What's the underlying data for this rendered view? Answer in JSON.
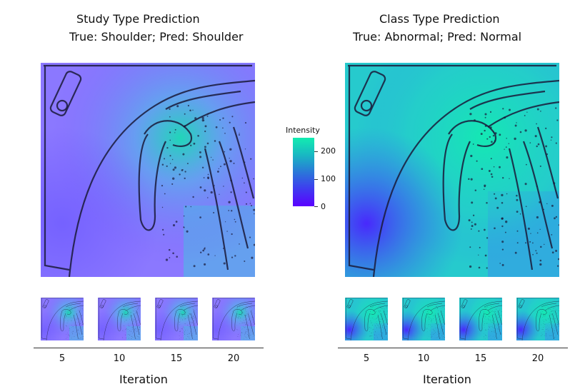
{
  "panels": [
    {
      "title": "Study Type Prediction",
      "subtitle": "True: Shoulder; Pred: Shoulder",
      "xlabel": "Iteration",
      "ticks": [
        "5",
        "10",
        "15",
        "20"
      ]
    },
    {
      "title": "Class Type Prediction",
      "subtitle": "True: Abnormal; Pred: Normal",
      "xlabel": "Iteration",
      "ticks": [
        "5",
        "10",
        "15",
        "20"
      ]
    }
  ],
  "colorbar": {
    "title": "Intensity",
    "ticks": [
      "200",
      "100",
      "0"
    ],
    "colors": [
      "#5a00ff",
      "#3f3af0",
      "#2a78d8",
      "#18b8c2",
      "#12ecb0"
    ]
  },
  "chart_data": [
    {
      "type": "heatmap",
      "title": "Study Type Prediction",
      "subtitle": "True: Shoulder; Pred: Shoulder",
      "description_values": "attention overlay on shoulder X-ray",
      "x": [
        5,
        10,
        15,
        20
      ],
      "xlabel": "Iteration",
      "color_range": [
        0,
        255
      ]
    },
    {
      "type": "heatmap",
      "title": "Class Type Prediction",
      "subtitle": "True: Abnormal; Pred: Normal",
      "x": [
        5,
        10,
        15,
        20
      ],
      "xlabel": "Iteration",
      "color_range": [
        0,
        255
      ]
    }
  ]
}
